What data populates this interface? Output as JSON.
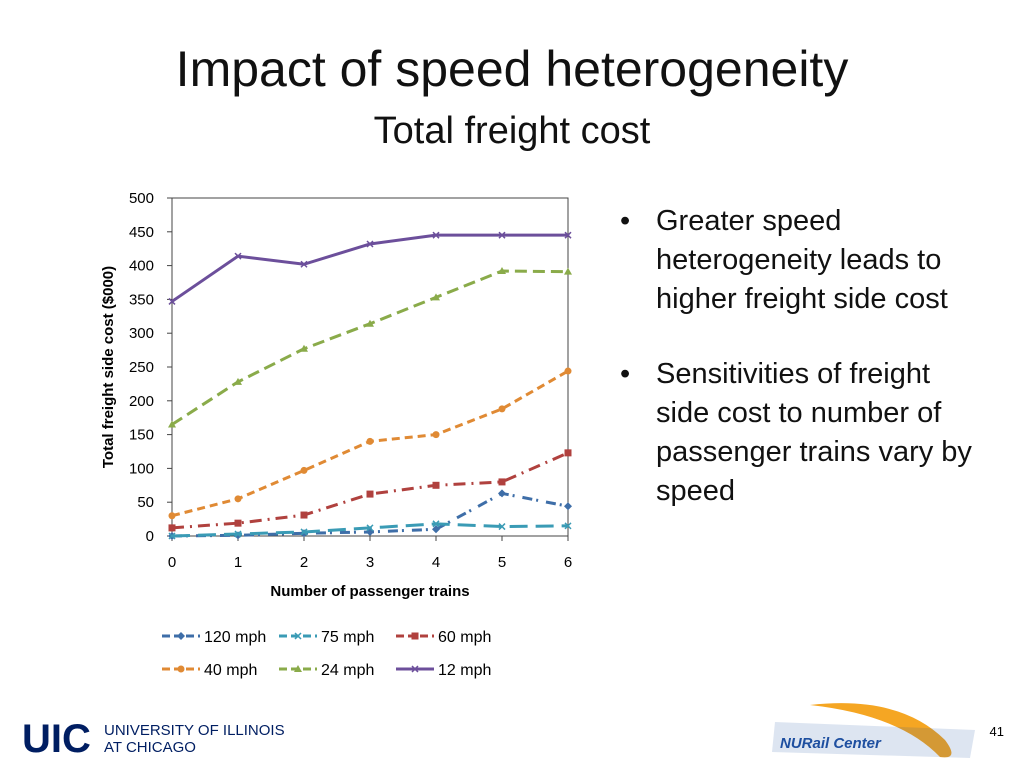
{
  "title": "Impact of speed heterogeneity",
  "subtitle": "Total freight cost",
  "bullets": [
    "Greater speed heterogeneity leads to higher freight side cost",
    "Sensitivities of freight side cost to number of passenger trains vary by speed"
  ],
  "page_number": "41",
  "logos": {
    "uic": "UIC",
    "uic_text1": "UNIVERSITY OF ILLINOIS",
    "uic_text2": "AT CHICAGO",
    "nurail": "NURail Center"
  },
  "chart_data": {
    "type": "line",
    "title": "",
    "xlabel": "Number of passenger trains",
    "ylabel": "Total freight side cost ($000)",
    "x": [
      0,
      1,
      2,
      3,
      4,
      5,
      6
    ],
    "xlim": [
      0,
      6
    ],
    "ylim": [
      0,
      500
    ],
    "yticks": [
      0,
      50,
      100,
      150,
      200,
      250,
      300,
      350,
      400,
      450,
      500
    ],
    "grid": false,
    "legend": "bottom",
    "series": [
      {
        "name": "120 mph",
        "color": "#3e6ea8",
        "dash": "10 4 2 8",
        "marker": "diamond",
        "values": [
          0,
          1,
          4,
          6,
          10,
          63,
          44
        ]
      },
      {
        "name": "75 mph",
        "color": "#3a9bb5",
        "dash": "18 8",
        "marker": "x",
        "values": [
          0,
          3,
          6,
          12,
          18,
          14,
          15
        ]
      },
      {
        "name": "60 mph",
        "color": "#b0413e",
        "dash": "12 6 2 6",
        "marker": "square",
        "values": [
          12,
          19,
          31,
          62,
          75,
          80,
          123
        ]
      },
      {
        "name": "40 mph",
        "color": "#e08a34",
        "dash": "8 5",
        "marker": "circle",
        "values": [
          30,
          55,
          97,
          140,
          150,
          188,
          244
        ]
      },
      {
        "name": "24 mph",
        "color": "#8aab4a",
        "dash": "12 6",
        "marker": "triangle",
        "values": [
          165,
          228,
          277,
          314,
          353,
          392,
          391
        ]
      },
      {
        "name": "12 mph",
        "color": "#6c4f9b",
        "dash": "",
        "marker": "star",
        "values": [
          347,
          414,
          402,
          432,
          445,
          445,
          445
        ]
      }
    ]
  }
}
